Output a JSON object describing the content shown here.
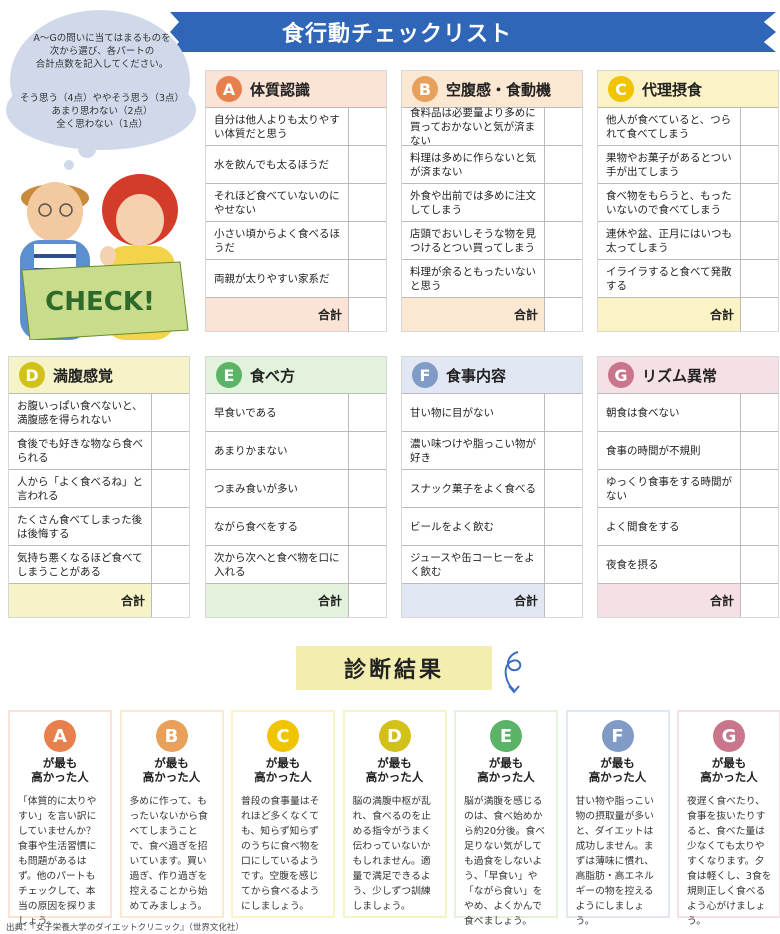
{
  "title": "食行動チェックリスト",
  "bubble": {
    "instruction_lines": [
      "A〜Gの問いに当てはまるものを",
      "次から選び、各パートの",
      "合計点数を記入してください。"
    ],
    "scoring_lines": [
      "そう思う（4点）ややそう思う（3点）",
      "あまり思わない（2点）",
      "全く思わない（1点）"
    ]
  },
  "illustration": {
    "sign_text": "CHECK!"
  },
  "total_label": "合計",
  "categories": [
    {
      "letter": "A",
      "title": "体質認識",
      "color": "#e8804d",
      "head_bg": "#fbe3d5",
      "items": [
        "自分は他人よりも太りやすい体質だと思う",
        "水を飲んでも太るほうだ",
        "それほど食べていないのにやせない",
        "小さい頃からよく食べるほうだ",
        "両親が太りやすい家系だ"
      ]
    },
    {
      "letter": "B",
      "title": "空腹感・食動機",
      "color": "#e8a05a",
      "head_bg": "#fbe8d2",
      "items": [
        "食料品は必要量より多めに買っておかないと気が済まない",
        "料理は多めに作らないと気が済まない",
        "外食や出前では多めに注文してしまう",
        "店頭でおいしそうな物を見つけるとつい買ってしまう",
        "料理が余るともったいないと思う"
      ]
    },
    {
      "letter": "C",
      "title": "代理摂食",
      "color": "#f0c400",
      "head_bg": "#fbf2c6",
      "items": [
        "他人が食べていると、つられて食べてしまう",
        "果物やお菓子があるとつい手が出てしまう",
        "食べ物をもらうと、もったいないので食べてしまう",
        "連休や盆、正月にはいつも太ってしまう",
        "イライラすると食べて発散する"
      ]
    },
    {
      "letter": "D",
      "title": "満腹感覚",
      "color": "#d2c11a",
      "head_bg": "#f6f3c8",
      "items": [
        "お腹いっぱい食べないと、満腹感を得られない",
        "食後でも好きな物なら食べられる",
        "人から「よく食べるね」と言われる",
        "たくさん食べてしまった後は後悔する",
        "気持ち悪くなるほど食べてしまうことがある"
      ]
    },
    {
      "letter": "E",
      "title": "食べ方",
      "color": "#5bb368",
      "head_bg": "#e3f2dc",
      "items": [
        "早食いである",
        "あまりかまない",
        "つまみ食いが多い",
        "ながら食べをする",
        "次から次へと食べ物を口に入れる"
      ]
    },
    {
      "letter": "F",
      "title": "食事内容",
      "color": "#7f9bc6",
      "head_bg": "#e2e8f3",
      "items": [
        "甘い物に目がない",
        "濃い味つけや脂っこい物が好き",
        "スナック菓子をよく食べる",
        "ビールをよく飲む",
        "ジュースや缶コーヒーをよく飲む"
      ]
    },
    {
      "letter": "G",
      "title": "リズム異常",
      "color": "#c9768c",
      "head_bg": "#f5e0e5",
      "items": [
        "朝食は食べない",
        "食事の時間が不規則",
        "ゆっくり食事をする時間がない",
        "よく間食をする",
        "夜食を摂る"
      ]
    }
  ],
  "result_heading": "診断結果",
  "results": [
    {
      "letter": "A",
      "heading": "が最も高かった人",
      "text": "「体質的に太りやすい」を言い訳にしていませんか？ 食事や生活習慣にも問題があるはず。他のパートもチェックして、本当の原因を探りましょう。"
    },
    {
      "letter": "B",
      "heading": "が最も高かった人",
      "text": "多めに作って、もったいないから食べてしまうことで、食べ過ぎを招いています。買い過ぎ、作り過ぎを控えることから始めてみましょう。"
    },
    {
      "letter": "C",
      "heading": "が最も高かった人",
      "text": "普段の食事量はそれほど多くなくても、知らず知らずのうちに食べ物を口にしているようです。空腹を感じてから食べるようにしましょう。"
    },
    {
      "letter": "D",
      "heading": "が最も高かった人",
      "text": "脳の満腹中枢が乱れ、食べるのを止める指令がうまく伝わっていないかもしれません。適量で満足できるよう、少しずつ訓練しましょう。"
    },
    {
      "letter": "E",
      "heading": "が最も高かった人",
      "text": "脳が満腹を感じるのは、食べ始めから約20分後。食べ足りない気がしても過食をしないよう、「早食い」や「ながら食い」をやめ、よくかんで食べましょう。"
    },
    {
      "letter": "F",
      "heading": "が最も高かった人",
      "text": "甘い物や脂っこい物の摂取量が多いと、ダイエットは成功しません。まずは薄味に慣れ、高脂肪・高エネルギーの物を控えるようにしましょう。"
    },
    {
      "letter": "G",
      "heading": "が最も高かった人",
      "text": "夜遅く食べたり、食事を抜いたりすると、食べた量は少なくても太りやすくなります。夕食は軽くし、3食を規則正しく食べるよう心がけましょう。"
    }
  ],
  "source": "出典：『女子栄養大学のダイエットクリニック』（世界文化社）"
}
